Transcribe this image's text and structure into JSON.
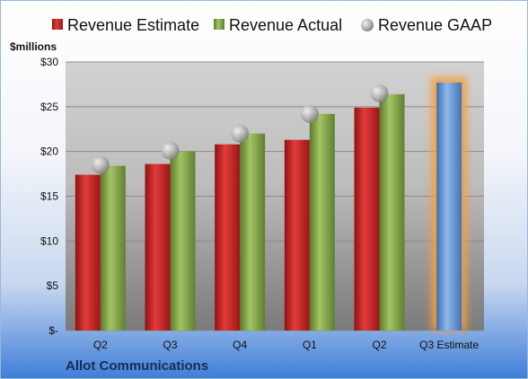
{
  "company": "Allot Communications",
  "chart_data": {
    "type": "bar",
    "title": "",
    "ylabel": "$millions",
    "xlabel": "",
    "categories": [
      "Q2",
      "Q3",
      "Q4",
      "Q1",
      "Q2",
      "Q3 Estimate"
    ],
    "ylim": [
      0,
      30
    ],
    "yticks": [
      0,
      5,
      10,
      15,
      20,
      25,
      30
    ],
    "ytick_labels": [
      "$-",
      "$5",
      "$10",
      "$15",
      "$20",
      "$25",
      "$30"
    ],
    "grid": true,
    "legend_position": "top",
    "series": [
      {
        "name": "Revenue Estimate",
        "kind": "bar",
        "color": "#d42a2a",
        "values": [
          17.4,
          18.6,
          20.8,
          21.3,
          24.9,
          null
        ]
      },
      {
        "name": "Revenue Actual",
        "kind": "bar",
        "color": "#8db04e",
        "values": [
          18.4,
          20.0,
          22.0,
          24.2,
          26.4,
          null
        ]
      },
      {
        "name": "Revenue GAAP",
        "kind": "marker",
        "color": "#a8a8a8",
        "values": [
          18.5,
          20.1,
          22.0,
          24.2,
          26.5,
          null
        ]
      }
    ],
    "estimate": {
      "category": "Q3 Estimate",
      "value": 27.7,
      "color": "#6f9fdc",
      "glow": "#f5a03a"
    }
  }
}
